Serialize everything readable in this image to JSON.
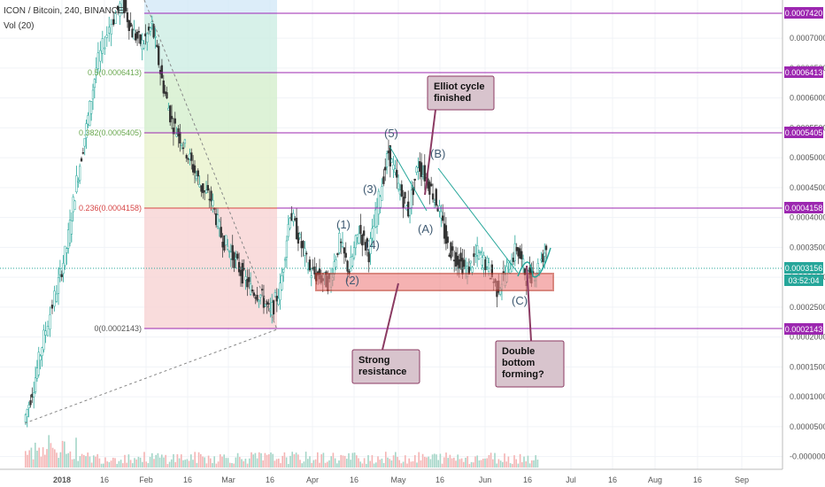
{
  "header": {
    "symbol": "ICON / Bitcoin, 240, BINANCE",
    "volume": "Vol (20)"
  },
  "chart_data": {
    "type": "candlestick",
    "pair": "ICON / Bitcoin",
    "interval": "240",
    "exchange": "BINANCE",
    "yaxis": {
      "ticks": [
        "0.0007000",
        "0.0006500",
        "0.0006000",
        "0.0005500",
        "0.0005000",
        "0.0004500",
        "0.0004000",
        "0.0003500",
        "0.0003000",
        "0.0002500",
        "0.0002000",
        "0.0001500",
        "0.0001000",
        "0.0000500",
        "-0.0000000"
      ]
    },
    "xaxis": {
      "ticks": [
        "2018",
        "16",
        "Feb",
        "16",
        "Mar",
        "16",
        "Apr",
        "16",
        "May",
        "16",
        "Jun",
        "16",
        "Jul",
        "16",
        "Aug",
        "16",
        "Sep"
      ]
    },
    "fib_levels": [
      {
        "label": "0.5(0.0006413)",
        "value": 0.0006413,
        "color": "#6aa84f"
      },
      {
        "label": "0.382(0.0005405)",
        "value": 0.0005405,
        "color": "#6aa84f"
      },
      {
        "label": "0.236(0.0004158)",
        "value": 0.0004158,
        "color": "#d64545"
      },
      {
        "label": "0(0.0002143)",
        "value": 0.0002143,
        "color": "#555555"
      }
    ],
    "level_tags": [
      "0.0007420",
      "0.0006413",
      "0.0005405",
      "0.0004158",
      "0.0002143"
    ],
    "price_tag": "0.0003156",
    "countdown": "03:52:04",
    "waves": [
      "(1)",
      "(2)",
      "(3)",
      "(4)",
      "(5)",
      "(A)",
      "(B)",
      "(C)"
    ],
    "annotations": {
      "elliot": [
        "Elliot cycle",
        "finished"
      ],
      "resistance": [
        "Strong",
        "resistance"
      ],
      "double_bottom": [
        "Double",
        "bottom",
        "forming?"
      ]
    },
    "price_path": [
      [
        0.0,
        5.8e-05
      ],
      [
        3,
        0.00012
      ],
      [
        6,
        0.0002
      ],
      [
        10,
        0.00028
      ],
      [
        13,
        0.00035
      ],
      [
        16,
        0.00046
      ],
      [
        19,
        0.00055
      ],
      [
        22,
        0.00065
      ],
      [
        26,
        0.00072
      ],
      [
        30,
        0.00076
      ],
      [
        33,
        0.00071
      ],
      [
        36,
        0.00069
      ],
      [
        39,
        0.00072
      ],
      [
        42,
        0.00063
      ],
      [
        45,
        0.00056
      ],
      [
        48,
        0.00053
      ],
      [
        51,
        0.00049
      ],
      [
        54,
        0.00045
      ],
      [
        57,
        0.00043
      ],
      [
        60,
        0.00037
      ],
      [
        63,
        0.00034
      ],
      [
        66,
        0.00031
      ],
      [
        69,
        0.00028
      ],
      [
        72,
        0.00027
      ],
      [
        75,
        0.00024
      ],
      [
        78,
        0.00028
      ],
      [
        81,
        0.00041
      ],
      [
        84,
        0.00036
      ],
      [
        87,
        0.00031
      ],
      [
        90,
        0.0003
      ],
      [
        93,
        0.00029
      ],
      [
        96,
        0.00036
      ],
      [
        99,
        0.00031
      ],
      [
        102,
        0.00038
      ],
      [
        105,
        0.00034
      ],
      [
        108,
        0.00043
      ],
      [
        111,
        0.00051
      ],
      [
        114,
        0.00045
      ],
      [
        117,
        0.00041
      ],
      [
        120,
        0.00049
      ],
      [
        123,
        0.00046
      ],
      [
        126,
        0.00042
      ],
      [
        129,
        0.00035
      ],
      [
        132,
        0.00033
      ],
      [
        135,
        0.00031
      ],
      [
        138,
        0.00034
      ],
      [
        141,
        0.00032
      ],
      [
        144,
        0.00028
      ],
      [
        147,
        0.00031
      ],
      [
        150,
        0.00035
      ],
      [
        153,
        0.0003
      ],
      [
        156,
        0.00031
      ],
      [
        159,
        0.00035
      ]
    ],
    "grid": true
  }
}
